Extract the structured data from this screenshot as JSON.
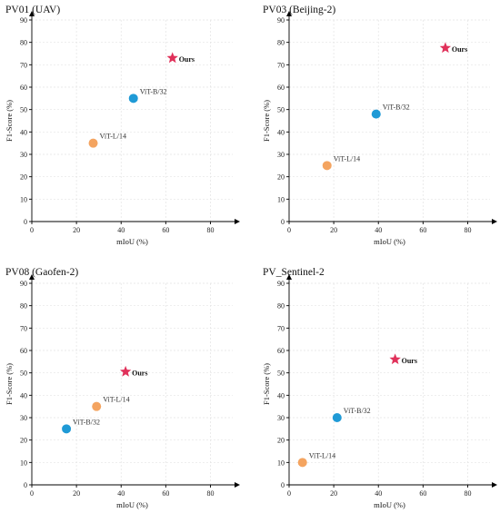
{
  "colors": {
    "vitb": "#1f9ad6",
    "vitl": "#f4a460",
    "ours": "#e0315a"
  },
  "chart_data": [
    {
      "type": "scatter",
      "title": "PV01 (UAV)",
      "xlabel": "mIoU (%)",
      "ylabel": "F1-Score (%)",
      "xlim": [
        0,
        90
      ],
      "ylim": [
        0,
        90
      ],
      "xticks": [
        "0",
        "20",
        "40",
        "60",
        "80"
      ],
      "yticks": [
        "0",
        "10",
        "20",
        "30",
        "40",
        "50",
        "60",
        "70",
        "80",
        "90"
      ],
      "grid": true,
      "points": [
        {
          "label": "ViT-L/14",
          "x": 27.5,
          "y": 35,
          "marker": "circle",
          "color": "#f4a460"
        },
        {
          "label": "ViT-B/32",
          "x": 45.5,
          "y": 55,
          "marker": "circle",
          "color": "#1f9ad6"
        },
        {
          "label": "Ours",
          "x": 63,
          "y": 73,
          "marker": "star",
          "color": "#e0315a"
        }
      ]
    },
    {
      "type": "scatter",
      "title": "PV03 (Beijing-2)",
      "xlabel": "mIoU (%)",
      "ylabel": "F1-Score (%)",
      "xlim": [
        0,
        90
      ],
      "ylim": [
        0,
        90
      ],
      "xticks": [
        "0",
        "20",
        "40",
        "60",
        "80"
      ],
      "yticks": [
        "0",
        "10",
        "20",
        "30",
        "40",
        "50",
        "60",
        "70",
        "80",
        "90"
      ],
      "grid": true,
      "points": [
        {
          "label": "ViT-L/14",
          "x": 17,
          "y": 25,
          "marker": "circle",
          "color": "#f4a460"
        },
        {
          "label": "ViT-B/32",
          "x": 39,
          "y": 48,
          "marker": "circle",
          "color": "#1f9ad6"
        },
        {
          "label": "Ours",
          "x": 70,
          "y": 77.5,
          "marker": "star",
          "color": "#e0315a"
        }
      ]
    },
    {
      "type": "scatter",
      "title": "PV08 (Gaofen-2)",
      "xlabel": "mIoU (%)",
      "ylabel": "F1-Score (%)",
      "xlim": [
        0,
        90
      ],
      "ylim": [
        0,
        90
      ],
      "xticks": [
        "0",
        "20",
        "40",
        "60",
        "80"
      ],
      "yticks": [
        "0",
        "10",
        "20",
        "30",
        "40",
        "50",
        "60",
        "70",
        "80",
        "90"
      ],
      "grid": true,
      "points": [
        {
          "label": "ViT-B/32",
          "x": 15.5,
          "y": 25,
          "marker": "circle",
          "color": "#1f9ad6"
        },
        {
          "label": "ViT-L/14",
          "x": 29,
          "y": 35,
          "marker": "circle",
          "color": "#f4a460"
        },
        {
          "label": "Ours",
          "x": 42,
          "y": 50.5,
          "marker": "star",
          "color": "#e0315a"
        }
      ]
    },
    {
      "type": "scatter",
      "title": "PV_Sentinel-2",
      "xlabel": "mIoU (%)",
      "ylabel": "F1-Score (%)",
      "xlim": [
        0,
        90
      ],
      "ylim": [
        0,
        90
      ],
      "xticks": [
        "0",
        "20",
        "40",
        "60",
        "80"
      ],
      "yticks": [
        "0",
        "10",
        "20",
        "30",
        "40",
        "50",
        "60",
        "70",
        "80",
        "90"
      ],
      "grid": true,
      "points": [
        {
          "label": "ViT-L/14",
          "x": 6,
          "y": 10,
          "marker": "circle",
          "color": "#f4a460"
        },
        {
          "label": "ViT-B/32",
          "x": 21.5,
          "y": 30,
          "marker": "circle",
          "color": "#1f9ad6"
        },
        {
          "label": "Ours",
          "x": 47.5,
          "y": 56,
          "marker": "star",
          "color": "#e0315a"
        }
      ]
    }
  ]
}
